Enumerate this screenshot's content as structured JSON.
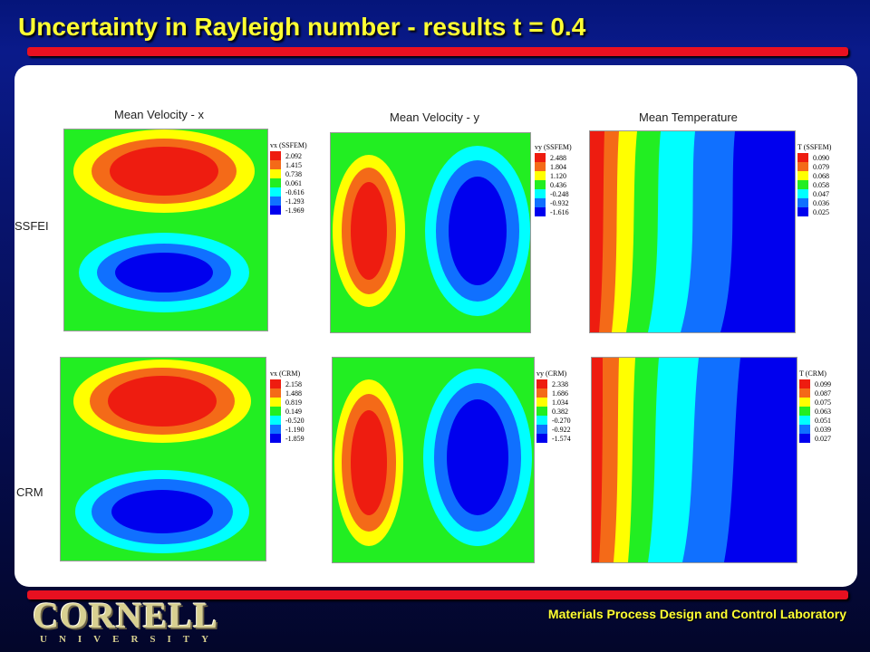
{
  "slide": {
    "title": "Uncertainty in Rayleigh number - results t = 0.4",
    "footer": "Materials Process Design and Control Laboratory",
    "logo": {
      "main": "CORNELL",
      "sub": "UNIVERSITY"
    }
  },
  "columns": {
    "vx": "Mean Velocity - x",
    "vy": "Mean Velocity - y",
    "temp": "Mean Temperature"
  },
  "rows": {
    "ssfem": "SSFEI",
    "crm": "CRM"
  },
  "legends": {
    "vx_ssfem": {
      "title": "vx (SSFEM)",
      "values": [
        "2.092",
        "1.415",
        "0.738",
        "0.061",
        "-0.616",
        "-1.293",
        "-1.969"
      ]
    },
    "vy_ssfem": {
      "title": "vy (SSFEM)",
      "values": [
        "2.488",
        "1.804",
        "1.120",
        "0.436",
        "-0.248",
        "-0.932",
        "-1.616"
      ]
    },
    "t_ssfem": {
      "title": "T (SSFEM)",
      "values": [
        "0.090",
        "0.079",
        "0.068",
        "0.058",
        "0.047",
        "0.036",
        "0.025"
      ]
    },
    "vx_crm": {
      "title": "vx (CRM)",
      "values": [
        "2.158",
        "1.488",
        "0.819",
        "0.149",
        "-0.520",
        "-1.190",
        "-1.859"
      ]
    },
    "vy_crm": {
      "title": "vy (CRM)",
      "values": [
        "2.338",
        "1.686",
        "1.034",
        "0.382",
        "-0.270",
        "-0.922",
        "-1.574"
      ]
    },
    "t_crm": {
      "title": "T (CRM)",
      "values": [
        "0.099",
        "0.087",
        "0.075",
        "0.063",
        "0.051",
        "0.039",
        "0.027"
      ]
    }
  },
  "colors": {
    "contour": [
      "#ee1c10",
      "#f46a18",
      "#ffff00",
      "#22ee22",
      "#00ffff",
      "#1070ff",
      "#0000ee"
    ],
    "accent_title": "#ffff33",
    "rule": "#e81020"
  }
}
